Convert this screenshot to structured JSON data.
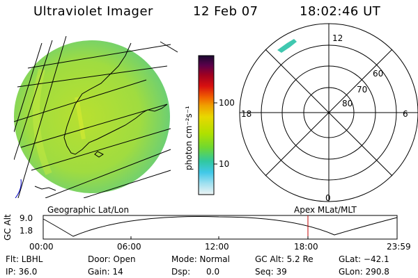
{
  "header": {
    "title": "Ultraviolet Imager",
    "date": "12 Feb 07",
    "time": "18:02:46 UT"
  },
  "colorbar": {
    "label": "photon cm⁻²s⁻¹",
    "ticks": [
      "100",
      "10"
    ],
    "colors": [
      "#2a0a3a",
      "#6a004a",
      "#a00020",
      "#d00010",
      "#f05000",
      "#f0a000",
      "#e0d000",
      "#b0e000",
      "#60d040",
      "#30c8a0",
      "#40c8e8",
      "#a0e0f0",
      "#e8f0f0"
    ]
  },
  "geo_label": "Geographic Lat/Lon",
  "apex_label": "Apex  MLat/MLT",
  "polar": {
    "mlt_labels": {
      "top": "12",
      "left": "18",
      "right": "6",
      "bottom": "0"
    },
    "lat_labels": [
      "60",
      "70",
      "80"
    ]
  },
  "timeline": {
    "ylabel": "GC Alt",
    "yticks": [
      "9.0",
      "1.8"
    ],
    "xticks": [
      "00:00",
      "06:00",
      "12:00",
      "18:00",
      "23:59"
    ],
    "marker_time": "18:02"
  },
  "status": {
    "flt": "Flt: LBHL",
    "ip": "IP: 36.0",
    "door": "Door: Open",
    "gain": "Gain: 14",
    "mode": "Mode: Normal",
    "dsp": "Dsp:      0.0",
    "gc_alt": "GC Alt: 5.2 Re",
    "seq": "Seq: 39",
    "glat": "GLat: −42.1",
    "glon": "GLon: 290.8"
  }
}
